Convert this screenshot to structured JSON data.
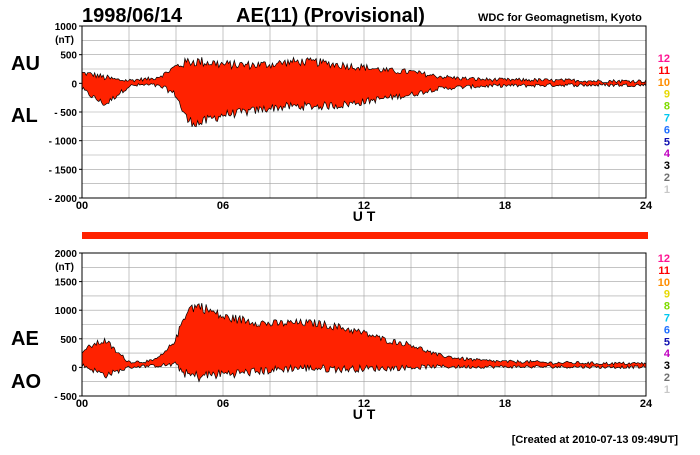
{
  "header": {
    "date": "1998/06/14",
    "title": "AE(11) (Provisional)",
    "source": "WDC for Geomagnetism, Kyoto"
  },
  "footer": {
    "created": "[Created at 2010-07-13 09:49UT]"
  },
  "colors": {
    "fill": "#ff2200",
    "grid": "#a0a0a0",
    "text": "#000000"
  },
  "station_count_scale": [
    {
      "label": "12",
      "color": "#ff1493"
    },
    {
      "label": "11",
      "color": "#ff0000"
    },
    {
      "label": "10",
      "color": "#ff8c00"
    },
    {
      "label": "9",
      "color": "#e6d800"
    },
    {
      "label": "8",
      "color": "#7fdc00"
    },
    {
      "label": "7",
      "color": "#00c8f0"
    },
    {
      "label": "6",
      "color": "#1e6eff"
    },
    {
      "label": "5",
      "color": "#1010b0"
    },
    {
      "label": "4",
      "color": "#c000c0"
    },
    {
      "label": "3",
      "color": "#000000"
    },
    {
      "label": "2",
      "color": "#707070"
    },
    {
      "label": "1",
      "color": "#c8c8c8"
    }
  ],
  "chart_data": [
    {
      "type": "area",
      "unit": "(nT)",
      "xlabel": "U T",
      "xlim": [
        0,
        24
      ],
      "xticks": [
        "00",
        "06",
        "12",
        "18",
        "24"
      ],
      "ylim": [
        -2000,
        1000
      ],
      "yticks": [
        "1000",
        "500",
        "0",
        "- 500",
        "- 1000",
        "- 1500",
        "- 2000"
      ],
      "grid": true,
      "series_labels": [
        "AU",
        "AL"
      ],
      "x": [
        0,
        0.5,
        1,
        1.5,
        2,
        2.5,
        3,
        3.5,
        4,
        4.25,
        4.5,
        5,
        5.5,
        6,
        7,
        8,
        9,
        10,
        11,
        12,
        13,
        14,
        15,
        16,
        17,
        18,
        19,
        20,
        21,
        22,
        23,
        24
      ],
      "series": [
        {
          "name": "AU",
          "values": [
            180,
            150,
            100,
            60,
            50,
            70,
            80,
            160,
            300,
            330,
            380,
            380,
            360,
            330,
            320,
            330,
            380,
            370,
            320,
            280,
            220,
            200,
            130,
            90,
            70,
            60,
            60,
            50,
            50,
            40,
            40,
            40
          ]
        },
        {
          "name": "AL",
          "values": [
            -100,
            -250,
            -370,
            -200,
            -50,
            -30,
            -30,
            -80,
            -200,
            -450,
            -650,
            -700,
            -620,
            -550,
            -500,
            -430,
            -400,
            -400,
            -380,
            -320,
            -250,
            -200,
            -100,
            -70,
            -50,
            -40,
            -40,
            -30,
            -30,
            -30,
            -30,
            -30
          ]
        }
      ]
    },
    {
      "type": "area",
      "unit": "(nT)",
      "xlabel": "U T",
      "xlim": [
        0,
        24
      ],
      "xticks": [
        "00",
        "06",
        "12",
        "18",
        "24"
      ],
      "ylim": [
        -500,
        2000
      ],
      "yticks": [
        "2000",
        "1500",
        "1000",
        "500",
        "0",
        "- 500"
      ],
      "grid": true,
      "series_labels": [
        "AE",
        "AO"
      ],
      "x": [
        0,
        0.5,
        1,
        1.5,
        2,
        2.5,
        3,
        3.5,
        4,
        4.25,
        4.5,
        5,
        5.5,
        6,
        7,
        8,
        9,
        10,
        11,
        12,
        13,
        14,
        15,
        16,
        17,
        18,
        19,
        20,
        21,
        22,
        23,
        24
      ],
      "series": [
        {
          "name": "AE",
          "values": [
            280,
            400,
            470,
            260,
            100,
            100,
            110,
            240,
            500,
            780,
            1030,
            1080,
            980,
            880,
            820,
            760,
            780,
            770,
            700,
            600,
            470,
            400,
            230,
            160,
            120,
            100,
            100,
            80,
            80,
            70,
            70,
            70
          ]
        },
        {
          "name": "AO",
          "values": [
            40,
            -50,
            -135,
            -70,
            0,
            20,
            25,
            40,
            50,
            -60,
            -135,
            -160,
            -130,
            -110,
            -90,
            -50,
            -10,
            -15,
            -30,
            -20,
            -15,
            0,
            15,
            10,
            10,
            10,
            10,
            10,
            10,
            5,
            5,
            5
          ]
        }
      ]
    }
  ]
}
